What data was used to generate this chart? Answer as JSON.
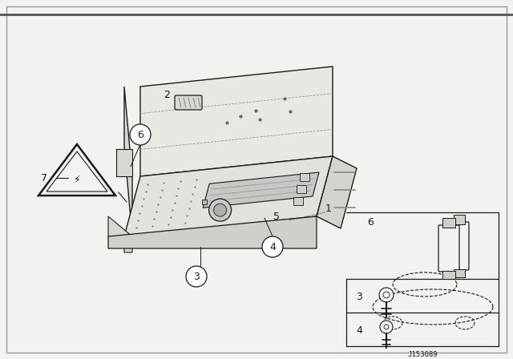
{
  "background_color": "#f2f2ee",
  "line_color": "#1a1a1a",
  "fig_width": 6.4,
  "fig_height": 4.48,
  "diagram_id": "J153089"
}
